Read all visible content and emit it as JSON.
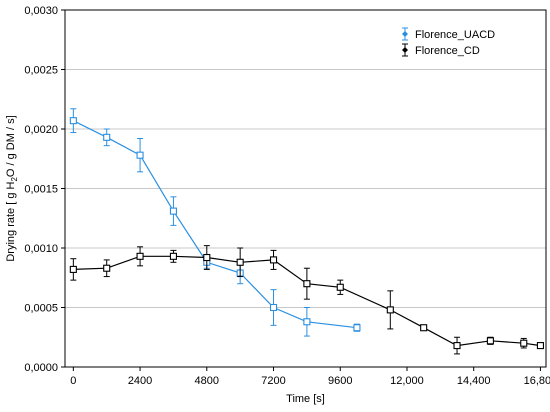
{
  "chart_data": {
    "type": "line",
    "title": "",
    "xlabel": "Time [s]",
    "ylabel": {
      "pre": "Drying rate [ g H",
      "sub": "2",
      "post": "O / g DM / s]"
    },
    "xlim": [
      -300,
      17000
    ],
    "ylim": [
      0,
      0.003
    ],
    "x_ticks": [
      0,
      2400,
      4800,
      7200,
      9600,
      12000,
      14400,
      16800
    ],
    "x_tick_labels": [
      "0",
      "2400",
      "4800",
      "7200",
      "9600",
      "12,000",
      "14,400",
      "16,800"
    ],
    "y_ticks": [
      0,
      0.0005,
      0.001,
      0.0015,
      0.002,
      0.0025,
      0.003
    ],
    "y_tick_labels": [
      "0,0000",
      "0,0005",
      "0,0010",
      "0,0015",
      "0,0020",
      "0,0025",
      "0,0030"
    ],
    "grid": {
      "horizontal": true,
      "vertical": false
    },
    "legend_position": "top-right",
    "series": [
      {
        "name": "Florence_UACD",
        "color": "#2b8fe0",
        "marker": "square",
        "x": [
          0,
          1200,
          2400,
          3600,
          4800,
          6000,
          7200,
          8400,
          10200
        ],
        "y": [
          0.00207,
          0.00193,
          0.00178,
          0.00131,
          0.00088,
          0.00079,
          0.0005,
          0.00038,
          0.00033
        ],
        "err": [
          0.0001,
          7e-05,
          0.00014,
          0.00012,
          5e-05,
          9e-05,
          0.00015,
          0.00012,
          3e-05
        ]
      },
      {
        "name": "Florence_CD",
        "color": "#000000",
        "marker": "square",
        "x": [
          0,
          1200,
          2400,
          3600,
          4800,
          6000,
          7200,
          8400,
          9600,
          11400,
          12600,
          13800,
          15000,
          16200,
          16800
        ],
        "y": [
          0.00082,
          0.00083,
          0.00093,
          0.00093,
          0.00092,
          0.00088,
          0.0009,
          0.0007,
          0.00067,
          0.00048,
          0.00033,
          0.00018,
          0.00022,
          0.0002,
          0.00018
        ],
        "err": [
          9e-05,
          7e-05,
          8e-05,
          5e-05,
          0.0001,
          0.00012,
          8e-05,
          0.00013,
          6e-05,
          0.00016,
          1e-05,
          7e-05,
          3e-05,
          4e-05,
          1e-05
        ]
      }
    ]
  }
}
